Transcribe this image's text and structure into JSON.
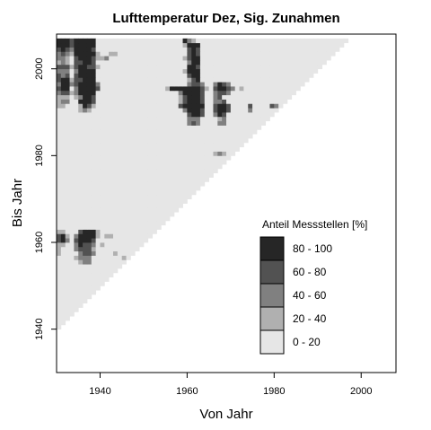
{
  "chart_data": {
    "type": "heatmap",
    "title": "Lufttemperatur Dez, Sig. Zunahmen",
    "xlabel": "Von Jahr",
    "ylabel": "Bis Jahr",
    "xlim": [
      1930,
      2008
    ],
    "ylim": [
      1930,
      2008
    ],
    "x_ticks": [
      {
        "value": 1940,
        "label": "1940"
      },
      {
        "value": 1960,
        "label": "1960"
      },
      {
        "value": 1980,
        "label": "1980"
      },
      {
        "value": 2000,
        "label": "2000"
      }
    ],
    "y_ticks": [
      {
        "value": 1940,
        "label": "1940"
      },
      {
        "value": 1960,
        "label": "1960"
      },
      {
        "value": 1980,
        "label": "1980"
      },
      {
        "value": 2000,
        "label": "2000"
      }
    ],
    "valid_region": {
      "min_span_years": 10,
      "max_year": 2006
    },
    "legend": {
      "title": "Anteil Messstellen [%]",
      "placement": "bottom-right",
      "classes": [
        {
          "label": "80 - 100",
          "color": "#262626"
        },
        {
          "label": "60 -  80",
          "color": "#525252"
        },
        {
          "label": "40 -  60",
          "color": "#808080"
        },
        {
          "label": "20 -  40",
          "color": "#b0b0b0"
        },
        {
          "label": " 0 -  20",
          "color": "#e6e6e6"
        }
      ]
    },
    "grid": false,
    "cells_note": "cells: [von_jahr, bis_jahr, class_index]; unlisted valid cells are class 4 (0-20%)",
    "cells": [
      [
        1930,
        2006,
        0
      ],
      [
        1931,
        2006,
        0
      ],
      [
        1932,
        2006,
        0
      ],
      [
        1933,
        2006,
        1
      ],
      [
        1934,
        2006,
        0
      ],
      [
        1935,
        2006,
        0
      ],
      [
        1936,
        2006,
        0
      ],
      [
        1937,
        2006,
        0
      ],
      [
        1938,
        2006,
        0
      ],
      [
        1930,
        2005,
        0
      ],
      [
        1931,
        2005,
        0
      ],
      [
        1932,
        2005,
        0
      ],
      [
        1933,
        2005,
        1
      ],
      [
        1934,
        2005,
        0
      ],
      [
        1935,
        2005,
        0
      ],
      [
        1936,
        2005,
        0
      ],
      [
        1937,
        2005,
        0
      ],
      [
        1938,
        2005,
        0
      ],
      [
        1930,
        2004,
        1
      ],
      [
        1931,
        2004,
        0
      ],
      [
        1932,
        2004,
        1
      ],
      [
        1933,
        2004,
        2
      ],
      [
        1934,
        2004,
        0
      ],
      [
        1935,
        2004,
        0
      ],
      [
        1936,
        2004,
        0
      ],
      [
        1937,
        2004,
        0
      ],
      [
        1938,
        2004,
        1
      ],
      [
        1930,
        2003,
        2
      ],
      [
        1931,
        2003,
        1
      ],
      [
        1932,
        2003,
        2
      ],
      [
        1933,
        2003,
        3
      ],
      [
        1934,
        2003,
        0
      ],
      [
        1935,
        2003,
        0
      ],
      [
        1936,
        2003,
        0
      ],
      [
        1937,
        2003,
        0
      ],
      [
        1938,
        2003,
        0
      ],
      [
        1939,
        2003,
        3
      ],
      [
        1942,
        2003,
        3
      ],
      [
        1943,
        2003,
        3
      ],
      [
        1930,
        2002,
        2
      ],
      [
        1931,
        2002,
        2
      ],
      [
        1932,
        2002,
        3
      ],
      [
        1934,
        2002,
        1
      ],
      [
        1935,
        2002,
        0
      ],
      [
        1936,
        2002,
        0
      ],
      [
        1937,
        2002,
        0
      ],
      [
        1938,
        2002,
        1
      ],
      [
        1939,
        2002,
        3
      ],
      [
        1940,
        2002,
        3
      ],
      [
        1941,
        2002,
        2
      ],
      [
        1930,
        2001,
        3
      ],
      [
        1931,
        2001,
        2
      ],
      [
        1932,
        2001,
        3
      ],
      [
        1934,
        2001,
        1
      ],
      [
        1935,
        2001,
        1
      ],
      [
        1936,
        2001,
        0
      ],
      [
        1937,
        2001,
        0
      ],
      [
        1938,
        2001,
        1
      ],
      [
        1930,
        2000,
        1
      ],
      [
        1931,
        2000,
        1
      ],
      [
        1932,
        2000,
        1
      ],
      [
        1933,
        2000,
        3
      ],
      [
        1934,
        2000,
        1
      ],
      [
        1935,
        2000,
        0
      ],
      [
        1936,
        2000,
        0
      ],
      [
        1937,
        2000,
        1
      ],
      [
        1938,
        2000,
        1
      ],
      [
        1939,
        2000,
        3
      ],
      [
        1930,
        1999,
        2
      ],
      [
        1931,
        1999,
        2
      ],
      [
        1932,
        1999,
        2
      ],
      [
        1934,
        1999,
        2
      ],
      [
        1935,
        1999,
        0
      ],
      [
        1936,
        1999,
        0
      ],
      [
        1937,
        1999,
        0
      ],
      [
        1938,
        1999,
        0
      ],
      [
        1930,
        1998,
        1
      ],
      [
        1931,
        1998,
        2
      ],
      [
        1932,
        1998,
        1
      ],
      [
        1934,
        1998,
        1
      ],
      [
        1935,
        1998,
        0
      ],
      [
        1936,
        1998,
        0
      ],
      [
        1937,
        1998,
        0
      ],
      [
        1938,
        1998,
        0
      ],
      [
        1930,
        1997,
        1
      ],
      [
        1931,
        1997,
        0
      ],
      [
        1932,
        1997,
        0
      ],
      [
        1933,
        1997,
        3
      ],
      [
        1934,
        1997,
        1
      ],
      [
        1935,
        1997,
        1
      ],
      [
        1936,
        1997,
        0
      ],
      [
        1937,
        1997,
        0
      ],
      [
        1938,
        1997,
        0
      ],
      [
        1930,
        1996,
        2
      ],
      [
        1931,
        1996,
        0
      ],
      [
        1932,
        1996,
        0
      ],
      [
        1933,
        1996,
        2
      ],
      [
        1934,
        1996,
        1
      ],
      [
        1935,
        1996,
        0
      ],
      [
        1936,
        1996,
        0
      ],
      [
        1937,
        1996,
        0
      ],
      [
        1938,
        1996,
        0
      ],
      [
        1939,
        1996,
        2
      ],
      [
        1930,
        1995,
        1
      ],
      [
        1931,
        1995,
        0
      ],
      [
        1932,
        1995,
        0
      ],
      [
        1934,
        1995,
        2
      ],
      [
        1935,
        1995,
        0
      ],
      [
        1936,
        1995,
        0
      ],
      [
        1937,
        1995,
        0
      ],
      [
        1938,
        1995,
        0
      ],
      [
        1939,
        1995,
        1
      ],
      [
        1930,
        1994,
        2
      ],
      [
        1931,
        1994,
        1
      ],
      [
        1932,
        1994,
        1
      ],
      [
        1933,
        1994,
        3
      ],
      [
        1934,
        1994,
        2
      ],
      [
        1935,
        1994,
        0
      ],
      [
        1936,
        1994,
        0
      ],
      [
        1937,
        1994,
        0
      ],
      [
        1938,
        1994,
        0
      ],
      [
        1930,
        1993,
        3
      ],
      [
        1931,
        1993,
        3
      ],
      [
        1932,
        1993,
        3
      ],
      [
        1934,
        1993,
        3
      ],
      [
        1935,
        1993,
        2
      ],
      [
        1936,
        1993,
        0
      ],
      [
        1937,
        1993,
        0
      ],
      [
        1938,
        1993,
        1
      ],
      [
        1930,
        1992,
        3
      ],
      [
        1931,
        1992,
        2
      ],
      [
        1932,
        1992,
        2
      ],
      [
        1935,
        1992,
        0
      ],
      [
        1936,
        1992,
        0
      ],
      [
        1937,
        1992,
        0
      ],
      [
        1938,
        1992,
        1
      ],
      [
        1930,
        1991,
        3
      ],
      [
        1931,
        1991,
        3
      ],
      [
        1935,
        1991,
        3
      ],
      [
        1936,
        1991,
        0
      ],
      [
        1937,
        1991,
        1
      ],
      [
        1938,
        1991,
        3
      ],
      [
        1935,
        1990,
        3
      ],
      [
        1936,
        1990,
        2
      ],
      [
        1937,
        1990,
        3
      ],
      [
        1959,
        2006,
        0
      ],
      [
        1960,
        2006,
        2
      ],
      [
        1961,
        2006,
        3
      ],
      [
        1959,
        2005,
        3
      ],
      [
        1960,
        2005,
        0
      ],
      [
        1961,
        2005,
        0
      ],
      [
        1962,
        2005,
        0
      ],
      [
        1960,
        2004,
        1
      ],
      [
        1961,
        2004,
        0
      ],
      [
        1962,
        2004,
        1
      ],
      [
        1960,
        2003,
        1
      ],
      [
        1961,
        2003,
        0
      ],
      [
        1962,
        2003,
        1
      ],
      [
        1959,
        2002,
        3
      ],
      [
        1960,
        2002,
        1
      ],
      [
        1961,
        2002,
        0
      ],
      [
        1962,
        2002,
        0
      ],
      [
        1960,
        2001,
        2
      ],
      [
        1961,
        2001,
        0
      ],
      [
        1962,
        2001,
        0
      ],
      [
        1960,
        2000,
        0
      ],
      [
        1961,
        2000,
        0
      ],
      [
        1962,
        2000,
        1
      ],
      [
        1959,
        1999,
        3
      ],
      [
        1960,
        1999,
        0
      ],
      [
        1961,
        1999,
        0
      ],
      [
        1962,
        1999,
        0
      ],
      [
        1960,
        1998,
        1
      ],
      [
        1961,
        1998,
        0
      ],
      [
        1962,
        1998,
        0
      ],
      [
        1960,
        1997,
        3
      ],
      [
        1961,
        1997,
        1
      ],
      [
        1962,
        1997,
        0
      ],
      [
        1960,
        1996,
        2
      ],
      [
        1961,
        1996,
        1
      ],
      [
        1962,
        1996,
        1
      ],
      [
        1963,
        1996,
        2
      ],
      [
        1966,
        1996,
        2
      ],
      [
        1967,
        1996,
        0
      ],
      [
        1968,
        1996,
        1
      ],
      [
        1969,
        1996,
        2
      ],
      [
        1955,
        1995,
        3
      ],
      [
        1956,
        1995,
        0
      ],
      [
        1957,
        1995,
        0
      ],
      [
        1958,
        1995,
        0
      ],
      [
        1959,
        1995,
        0
      ],
      [
        1960,
        1995,
        0
      ],
      [
        1961,
        1995,
        0
      ],
      [
        1962,
        1995,
        0
      ],
      [
        1963,
        1995,
        1
      ],
      [
        1964,
        1995,
        3
      ],
      [
        1966,
        1995,
        1
      ],
      [
        1967,
        1995,
        0
      ],
      [
        1968,
        1995,
        0
      ],
      [
        1969,
        1995,
        1
      ],
      [
        1970,
        1995,
        2
      ],
      [
        1972,
        1995,
        3
      ],
      [
        1958,
        1994,
        2
      ],
      [
        1959,
        1994,
        0
      ],
      [
        1960,
        1994,
        0
      ],
      [
        1961,
        1994,
        0
      ],
      [
        1962,
        1994,
        0
      ],
      [
        1963,
        1994,
        1
      ],
      [
        1966,
        1994,
        2
      ],
      [
        1967,
        1994,
        1
      ],
      [
        1968,
        1994,
        1
      ],
      [
        1969,
        1994,
        2
      ],
      [
        1958,
        1993,
        3
      ],
      [
        1959,
        1993,
        1
      ],
      [
        1960,
        1993,
        0
      ],
      [
        1961,
        1993,
        0
      ],
      [
        1962,
        1993,
        0
      ],
      [
        1963,
        1993,
        1
      ],
      [
        1966,
        1993,
        2
      ],
      [
        1967,
        1993,
        1
      ],
      [
        1958,
        1992,
        3
      ],
      [
        1959,
        1992,
        1
      ],
      [
        1960,
        1992,
        0
      ],
      [
        1961,
        1992,
        0
      ],
      [
        1962,
        1992,
        0
      ],
      [
        1963,
        1992,
        1
      ],
      [
        1966,
        1992,
        2
      ],
      [
        1967,
        1992,
        2
      ],
      [
        1968,
        1992,
        1
      ],
      [
        1958,
        1991,
        1
      ],
      [
        1959,
        1991,
        0
      ],
      [
        1960,
        1991,
        0
      ],
      [
        1961,
        1991,
        0
      ],
      [
        1962,
        1991,
        0
      ],
      [
        1963,
        1991,
        0
      ],
      [
        1966,
        1991,
        1
      ],
      [
        1967,
        1991,
        0
      ],
      [
        1968,
        1991,
        0
      ],
      [
        1969,
        1991,
        1
      ],
      [
        1974,
        1991,
        1
      ],
      [
        1979,
        1991,
        1
      ],
      [
        1980,
        1991,
        2
      ],
      [
        1959,
        1990,
        2
      ],
      [
        1960,
        1990,
        0
      ],
      [
        1961,
        1990,
        0
      ],
      [
        1962,
        1990,
        0
      ],
      [
        1963,
        1990,
        1
      ],
      [
        1966,
        1990,
        1
      ],
      [
        1967,
        1990,
        0
      ],
      [
        1968,
        1990,
        0
      ],
      [
        1969,
        1990,
        1
      ],
      [
        1974,
        1990,
        2
      ],
      [
        1960,
        1989,
        1
      ],
      [
        1961,
        1989,
        0
      ],
      [
        1962,
        1989,
        0
      ],
      [
        1963,
        1989,
        1
      ],
      [
        1966,
        1989,
        2
      ],
      [
        1967,
        1989,
        0
      ],
      [
        1968,
        1989,
        1
      ],
      [
        1960,
        1988,
        2
      ],
      [
        1961,
        1988,
        2
      ],
      [
        1962,
        1988,
        2
      ],
      [
        1967,
        1988,
        3
      ],
      [
        1968,
        1988,
        2
      ],
      [
        1960,
        1987,
        2
      ],
      [
        1961,
        1987,
        1
      ],
      [
        1962,
        1987,
        2
      ],
      [
        1967,
        1987,
        2
      ],
      [
        1968,
        1987,
        2
      ],
      [
        1966,
        1980,
        3
      ],
      [
        1967,
        1980,
        2
      ],
      [
        1968,
        1980,
        3
      ],
      [
        1930,
        1962,
        3
      ],
      [
        1931,
        1962,
        3
      ],
      [
        1935,
        1962,
        1
      ],
      [
        1936,
        1962,
        0
      ],
      [
        1937,
        1962,
        0
      ],
      [
        1938,
        1962,
        0
      ],
      [
        1939,
        1962,
        3
      ],
      [
        1930,
        1961,
        1
      ],
      [
        1931,
        1961,
        0
      ],
      [
        1932,
        1961,
        3
      ],
      [
        1934,
        1961,
        2
      ],
      [
        1935,
        1961,
        0
      ],
      [
        1936,
        1961,
        0
      ],
      [
        1937,
        1961,
        0
      ],
      [
        1938,
        1961,
        0
      ],
      [
        1939,
        1961,
        3
      ],
      [
        1941,
        1961,
        3
      ],
      [
        1942,
        1961,
        3
      ],
      [
        1930,
        1960,
        1
      ],
      [
        1931,
        1960,
        0
      ],
      [
        1932,
        1960,
        2
      ],
      [
        1934,
        1960,
        1
      ],
      [
        1935,
        1960,
        0
      ],
      [
        1936,
        1960,
        0
      ],
      [
        1937,
        1960,
        0
      ],
      [
        1938,
        1960,
        1
      ],
      [
        1930,
        1959,
        3
      ],
      [
        1931,
        1959,
        3
      ],
      [
        1934,
        1959,
        2
      ],
      [
        1935,
        1959,
        0
      ],
      [
        1936,
        1959,
        1
      ],
      [
        1937,
        1959,
        1
      ],
      [
        1938,
        1959,
        2
      ],
      [
        1940,
        1959,
        3
      ],
      [
        1930,
        1958,
        3
      ],
      [
        1934,
        1958,
        2
      ],
      [
        1935,
        1958,
        1
      ],
      [
        1936,
        1958,
        1
      ],
      [
        1937,
        1958,
        1
      ],
      [
        1938,
        1958,
        3
      ],
      [
        1930,
        1957,
        3
      ],
      [
        1934,
        1958,
        2
      ],
      [
        1935,
        1957,
        2
      ],
      [
        1936,
        1957,
        1
      ],
      [
        1937,
        1957,
        1
      ],
      [
        1938,
        1957,
        2
      ],
      [
        1943,
        1957,
        3
      ],
      [
        1934,
        1956,
        3
      ],
      [
        1935,
        1956,
        2
      ],
      [
        1936,
        1956,
        2
      ],
      [
        1937,
        1956,
        2
      ],
      [
        1945,
        1956,
        3
      ],
      [
        1935,
        1955,
        3
      ],
      [
        1936,
        1955,
        2
      ],
      [
        1937,
        1955,
        2
      ]
    ]
  }
}
